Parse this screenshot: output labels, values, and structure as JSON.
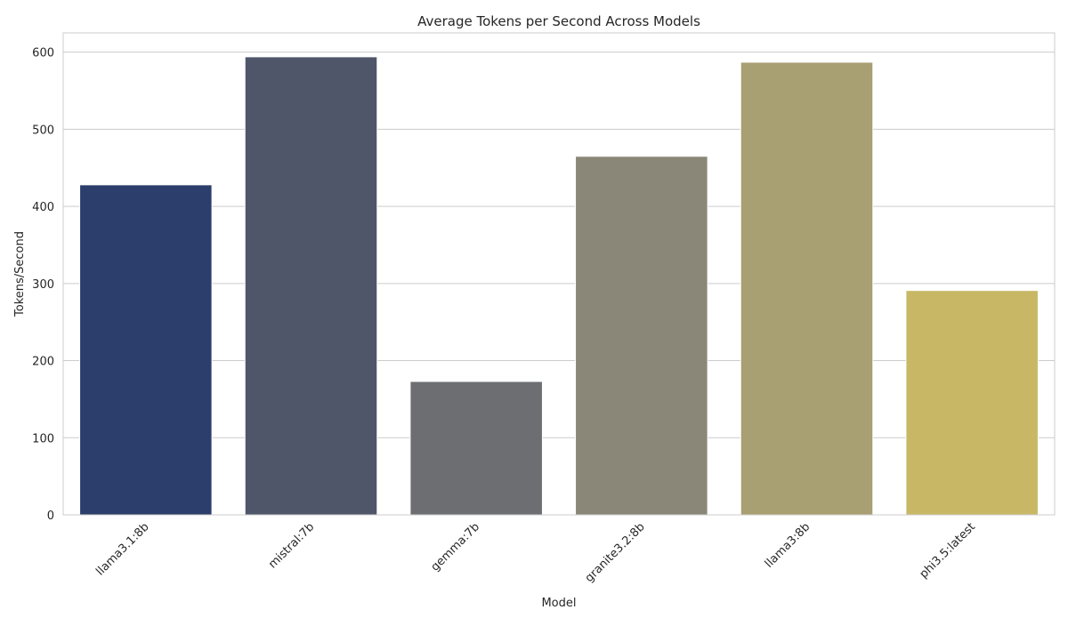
{
  "chart_data": {
    "type": "bar",
    "title": "Average Tokens per Second Across Models",
    "xlabel": "Model",
    "ylabel": "Tokens/Second",
    "categories": [
      "llama3.1:8b",
      "mistral:7b",
      "gemma:7b",
      "granite3.2:8b",
      "llama3:8b",
      "phi3.5:latest"
    ],
    "values": [
      428,
      594,
      173,
      465,
      587,
      291
    ],
    "colors": [
      "#2c3e6b",
      "#4f5669",
      "#6d6e71",
      "#8a8678",
      "#a89f72",
      "#c8b866"
    ],
    "ylim": [
      0,
      625
    ],
    "yticks": [
      0,
      100,
      200,
      300,
      400,
      500,
      600
    ],
    "grid": "horizontal",
    "legend": "none"
  }
}
